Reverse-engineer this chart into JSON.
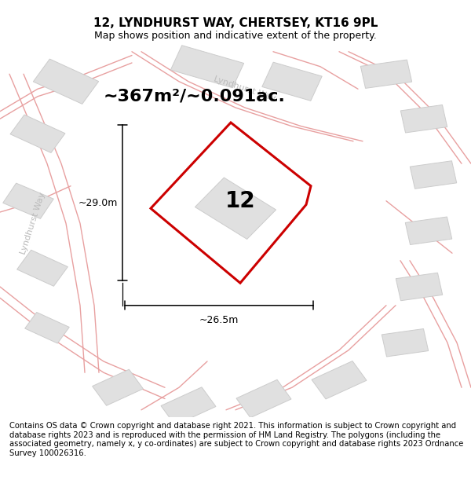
{
  "title": "12, LYNDHURST WAY, CHERTSEY, KT16 9PL",
  "subtitle": "Map shows position and indicative extent of the property.",
  "area_text": "~367m²/~0.091ac.",
  "label_12": "12",
  "dim_height": "~29.0m",
  "dim_width": "~26.5m",
  "footer": "Contains OS data © Crown copyright and database right 2021. This information is subject to Crown copyright and database rights 2023 and is reproduced with the permission of HM Land Registry. The polygons (including the associated geometry, namely x, y co-ordinates) are subject to Crown copyright and database rights 2023 Ordnance Survey 100026316.",
  "bg_color": "#ffffff",
  "map_bg": "#ffffff",
  "road_color": "#e8a0a0",
  "building_color": "#e0e0e0",
  "building_edge": "#cccccc",
  "plot_color": "#cc0000",
  "title_fontsize": 11,
  "subtitle_fontsize": 9,
  "area_fontsize": 16,
  "label_fontsize": 20,
  "footer_fontsize": 7.2,
  "dim_fontsize": 9,
  "street_label_color": "#bbbbbb",
  "street_label_fontsize": 8
}
